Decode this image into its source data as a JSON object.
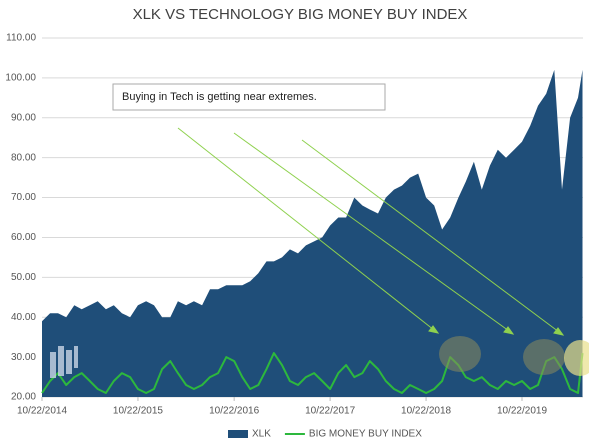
{
  "chart_data": {
    "type": "area-line",
    "title": "XLK VS TECHNOLOGY BIG MONEY BUY INDEX",
    "annotation": "Buying in Tech is getting near extremes.",
    "x": [
      "2014-10-22",
      "2014-11-22",
      "2014-12-22",
      "2015-01-22",
      "2015-02-22",
      "2015-03-22",
      "2015-04-22",
      "2015-05-22",
      "2015-06-22",
      "2015-07-22",
      "2015-08-22",
      "2015-09-22",
      "2015-10-22",
      "2015-11-22",
      "2015-12-22",
      "2016-01-22",
      "2016-02-22",
      "2016-03-22",
      "2016-04-22",
      "2016-05-22",
      "2016-06-22",
      "2016-07-22",
      "2016-08-22",
      "2016-09-22",
      "2016-10-22",
      "2016-11-22",
      "2016-12-22",
      "2017-01-22",
      "2017-02-22",
      "2017-03-22",
      "2017-04-22",
      "2017-05-22",
      "2017-06-22",
      "2017-07-22",
      "2017-08-22",
      "2017-09-22",
      "2017-10-22",
      "2017-11-22",
      "2017-12-22",
      "2018-01-22",
      "2018-02-22",
      "2018-03-22",
      "2018-04-22",
      "2018-05-22",
      "2018-06-22",
      "2018-07-22",
      "2018-08-22",
      "2018-09-22",
      "2018-10-22",
      "2018-11-22",
      "2018-12-22",
      "2019-01-22",
      "2019-02-22",
      "2019-03-22",
      "2019-04-22",
      "2019-05-22",
      "2019-06-22",
      "2019-07-22",
      "2019-08-22",
      "2019-09-22",
      "2019-10-22",
      "2019-11-22",
      "2019-12-22",
      "2020-01-22",
      "2020-02-22",
      "2020-03-22",
      "2020-04-22",
      "2020-05-22",
      "2020-06-08"
    ],
    "series": [
      {
        "name": "XLK",
        "kind": "area",
        "color": "#1f4e79",
        "values": [
          39,
          41,
          41,
          40,
          43,
          42,
          43,
          44,
          42,
          43,
          41,
          40,
          43,
          44,
          43,
          40,
          40,
          44,
          43,
          44,
          43,
          47,
          47,
          48,
          48,
          48,
          49,
          51,
          54,
          54,
          55,
          57,
          56,
          58,
          59,
          60,
          63,
          65,
          65,
          70,
          68,
          67,
          66,
          70,
          72,
          73,
          75,
          76,
          70,
          68,
          62,
          65,
          70,
          74,
          79,
          72,
          78,
          82,
          80,
          82,
          84,
          88,
          93,
          96,
          102,
          72,
          90,
          95,
          102
        ]
      },
      {
        "name": "BIG MONEY BUY INDEX",
        "kind": "line",
        "color": "#2db83d",
        "values": [
          21,
          24,
          26,
          23,
          25,
          26,
          24,
          22,
          21,
          24,
          26,
          25,
          22,
          21,
          22,
          27,
          29,
          26,
          23,
          22,
          23,
          25,
          26,
          30,
          29,
          25,
          22,
          23,
          27,
          31,
          28,
          24,
          23,
          25,
          26,
          24,
          22,
          26,
          28,
          25,
          26,
          29,
          27,
          24,
          22,
          21,
          23,
          22,
          21,
          22,
          24,
          30,
          28,
          25,
          24,
          25,
          23,
          22,
          24,
          23,
          24,
          22,
          23,
          29,
          30,
          27,
          22,
          21,
          31
        ]
      }
    ],
    "xlim": [
      "2014-10-22",
      "2020-06-10"
    ],
    "xticks": [
      {
        "value": "2014-10-22",
        "label": "10/22/2014"
      },
      {
        "value": "2015-10-22",
        "label": "10/22/2015"
      },
      {
        "value": "2016-10-22",
        "label": "10/22/2016"
      },
      {
        "value": "2017-10-22",
        "label": "10/22/2017"
      },
      {
        "value": "2018-10-22",
        "label": "10/22/2018"
      },
      {
        "value": "2019-10-22",
        "label": "10/22/2019"
      }
    ],
    "ylim": [
      20,
      110
    ],
    "yticks": [
      {
        "value": 20,
        "label": "20.00"
      },
      {
        "value": 30,
        "label": "30.00"
      },
      {
        "value": 40,
        "label": "40.00"
      },
      {
        "value": 50,
        "label": "50.00"
      },
      {
        "value": 60,
        "label": "60.00"
      },
      {
        "value": 70,
        "label": "70.00"
      },
      {
        "value": 80,
        "label": "80.00"
      },
      {
        "value": 90,
        "label": "90.00"
      },
      {
        "value": 100,
        "label": "100.00"
      },
      {
        "value": 110,
        "label": "110.00"
      }
    ],
    "grid": true,
    "legend": "bottom"
  }
}
